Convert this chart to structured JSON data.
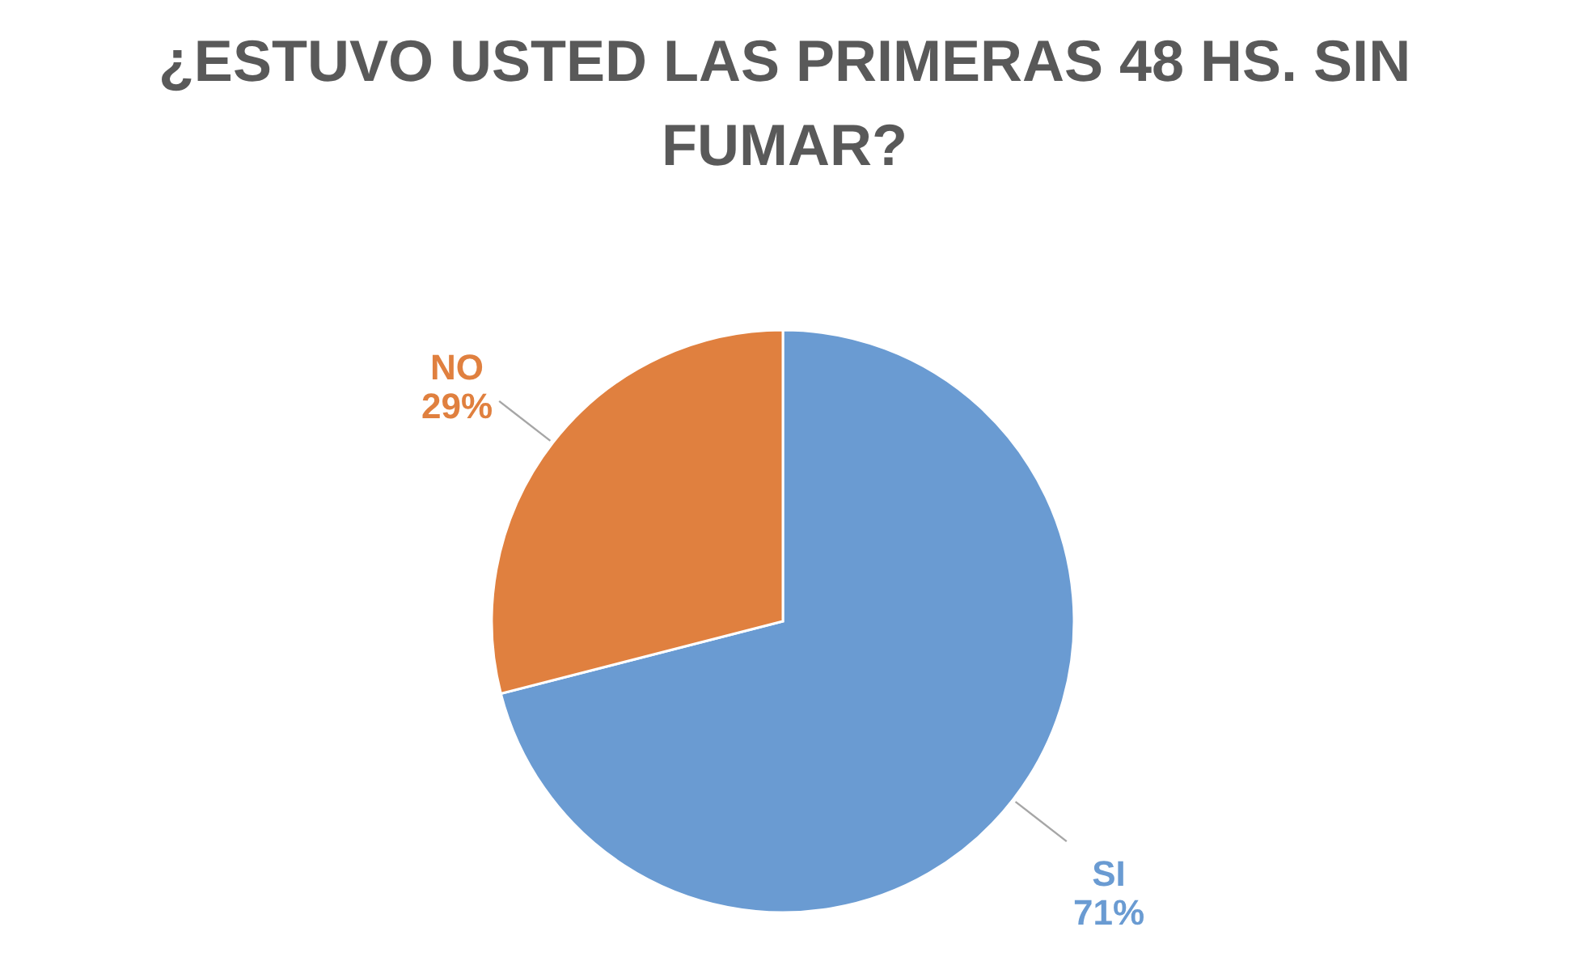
{
  "chart_data": {
    "type": "pie",
    "title": "¿ESTUVO USTED LAS PRIMERAS 48 HS. SIN FUMAR?",
    "categories": [
      "SI",
      "NO"
    ],
    "values": [
      71,
      29
    ],
    "value_labels": [
      "71%",
      "29%"
    ],
    "colors": [
      "#6a9bd2",
      "#e0803f"
    ]
  }
}
